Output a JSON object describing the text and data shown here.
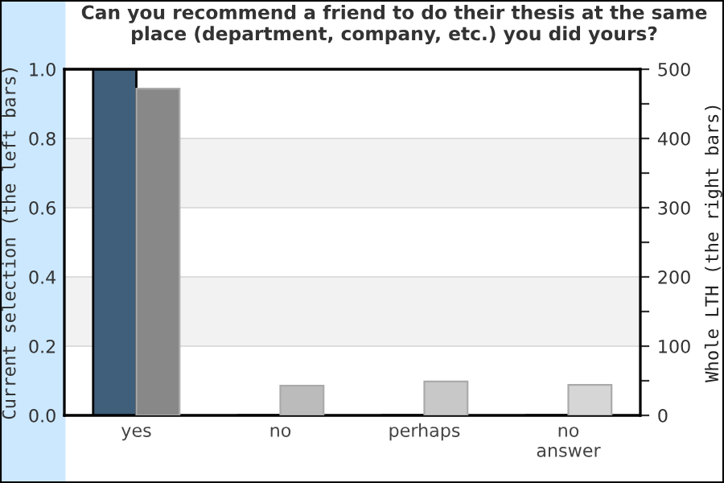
{
  "chart_data": {
    "type": "bar",
    "title": "Can you recommend a friend to do their thesis at the same place (department, company, etc.) you did yours?",
    "ylabel": "Current selection (the left bars)",
    "y2label": "Whole LTH (the right bars)",
    "categories": [
      "yes",
      "no",
      "perhaps",
      "no answer"
    ],
    "series": [
      {
        "color": "#3f5f7a",
        "values": [
          1.0,
          0,
          0,
          0
        ]
      },
      {
        "colors": [
          "#888888",
          "#bbbbbb",
          "#c8c8c8",
          "#d6d6d6"
        ],
        "values": [
          472,
          43,
          49,
          44
        ],
        "axis": "y2"
      }
    ],
    "ylim": [
      0,
      1
    ],
    "yticks": [
      {
        "value": 0,
        "label": "0.0"
      },
      {
        "value": 0.2,
        "label": "0.2"
      },
      {
        "value": 0.4,
        "label": "0.4"
      },
      {
        "value": 0.6,
        "label": "0.6"
      },
      {
        "value": 0.8,
        "label": "0.8"
      },
      {
        "value": 1,
        "label": "1.0"
      }
    ],
    "y2lim": [
      0,
      500
    ],
    "y2ticks": [
      0,
      {
        "value": 50,
        "label": null
      },
      100,
      {
        "value": 150,
        "label": null
      },
      200,
      {
        "value": 250,
        "label": null
      },
      300,
      {
        "value": 350,
        "label": null
      },
      400,
      {
        "value": 450,
        "label": null
      },
      500
    ],
    "bands": [
      {
        "axis": "y",
        "from": 0.2,
        "to": 0.4,
        "color": "#f2f2f2"
      },
      {
        "axis": "y",
        "from": 0.6,
        "to": 0.8,
        "color": "#f2f2f2"
      }
    ],
    "grid": "y",
    "legend": false
  }
}
